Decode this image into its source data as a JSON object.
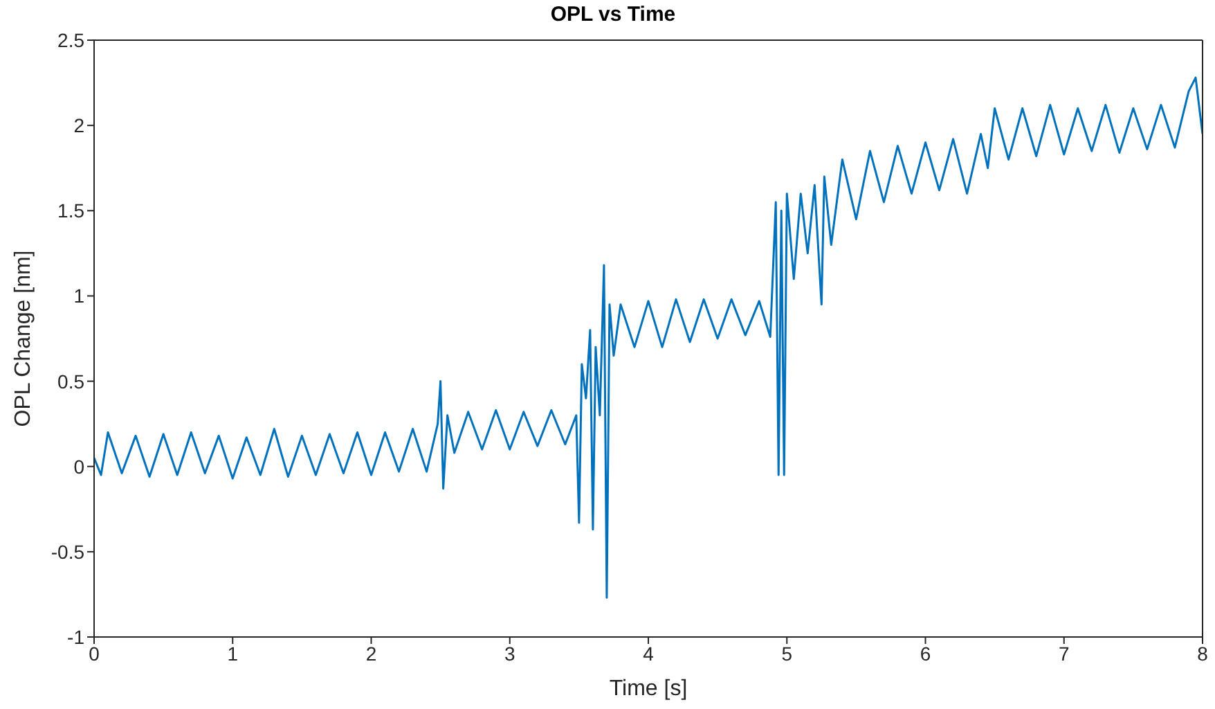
{
  "chart_data": {
    "type": "line",
    "title": "OPL vs Time",
    "xlabel": "Time [s]",
    "ylabel": "OPL Change [nm]",
    "xlim": [
      0,
      8
    ],
    "xticks": [
      0,
      1,
      2,
      3,
      4,
      5,
      6,
      7,
      8
    ],
    "ylim": [
      -1,
      2.5
    ],
    "yticks": [
      -1,
      -0.5,
      0,
      0.5,
      1,
      1.5,
      2,
      2.5
    ],
    "marker": "none",
    "line_style": "solid",
    "series": [
      {
        "color": "#0072bd",
        "x": [
          0,
          0.05,
          0.1,
          0.2,
          0.3,
          0.4,
          0.5,
          0.6,
          0.7,
          0.8,
          0.9,
          1.0,
          1.1,
          1.2,
          1.3,
          1.4,
          1.5,
          1.6,
          1.7,
          1.8,
          1.9,
          2.0,
          2.1,
          2.2,
          2.3,
          2.4,
          2.48,
          2.5,
          2.52,
          2.55,
          2.6,
          2.7,
          2.8,
          2.9,
          3.0,
          3.1,
          3.2,
          3.3,
          3.4,
          3.48,
          3.5,
          3.52,
          3.55,
          3.58,
          3.6,
          3.62,
          3.65,
          3.68,
          3.7,
          3.72,
          3.75,
          3.8,
          3.9,
          4.0,
          4.1,
          4.2,
          4.3,
          4.4,
          4.5,
          4.6,
          4.7,
          4.8,
          4.88,
          4.92,
          4.94,
          4.96,
          4.98,
          5.0,
          5.05,
          5.1,
          5.15,
          5.2,
          5.25,
          5.27,
          5.32,
          5.4,
          5.5,
          5.6,
          5.7,
          5.8,
          5.9,
          6.0,
          6.1,
          6.2,
          6.3,
          6.4,
          6.45,
          6.5,
          6.6,
          6.7,
          6.8,
          6.9,
          7.0,
          7.1,
          7.2,
          7.3,
          7.4,
          7.5,
          7.6,
          7.7,
          7.8,
          7.9,
          7.95,
          8.0
        ],
        "values": [
          0.05,
          -0.05,
          0.2,
          -0.04,
          0.18,
          -0.06,
          0.19,
          -0.05,
          0.2,
          -0.04,
          0.18,
          -0.07,
          0.17,
          -0.05,
          0.22,
          -0.06,
          0.18,
          -0.05,
          0.19,
          -0.04,
          0.2,
          -0.05,
          0.2,
          -0.03,
          0.22,
          -0.03,
          0.25,
          0.5,
          -0.13,
          0.3,
          0.08,
          0.32,
          0.1,
          0.33,
          0.1,
          0.32,
          0.12,
          0.33,
          0.13,
          0.3,
          -0.33,
          0.6,
          0.4,
          0.8,
          -0.37,
          0.7,
          0.3,
          1.18,
          -0.77,
          0.95,
          0.65,
          0.95,
          0.7,
          0.97,
          0.7,
          0.98,
          0.73,
          0.98,
          0.75,
          0.98,
          0.77,
          0.97,
          0.76,
          1.55,
          -0.05,
          1.5,
          -0.05,
          1.6,
          1.1,
          1.6,
          1.25,
          1.65,
          0.95,
          1.7,
          1.3,
          1.8,
          1.45,
          1.85,
          1.55,
          1.88,
          1.6,
          1.9,
          1.62,
          1.92,
          1.6,
          1.95,
          1.75,
          2.1,
          1.8,
          2.1,
          1.82,
          2.12,
          1.83,
          2.1,
          1.85,
          2.12,
          1.84,
          2.1,
          1.86,
          2.12,
          1.87,
          2.2,
          2.28,
          1.95
        ]
      }
    ]
  }
}
